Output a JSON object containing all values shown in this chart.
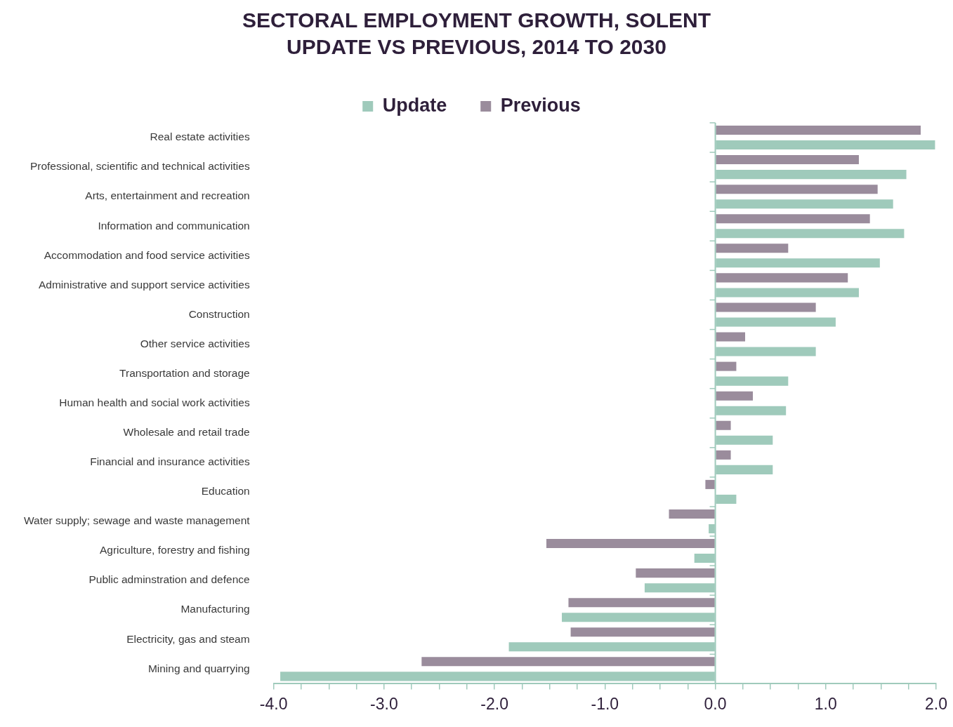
{
  "chart_data": {
    "type": "bar",
    "orientation": "horizontal",
    "title": "SECTORAL EMPLOYMENT GROWTH, SOLENT UPDATE VS PREVIOUS, 2014 TO 2030",
    "categories": [
      "Real estate activities",
      "Professional, scientific and technical activities",
      "Arts, entertainment and recreation",
      "Information and communication",
      "Accommodation and food service activities",
      "Administrative and support service activities",
      "Construction",
      "Other service activities",
      "Transportation and storage",
      "Human health and social work activities",
      "Wholesale and retail trade",
      "Financial and insurance activities",
      "Education",
      "Water supply; sewage and waste management",
      "Agriculture, forestry and fishing",
      "Public adminstration and defence",
      "Manufacturing",
      "Electricity, gas and steam",
      "Mining and quarrying"
    ],
    "series": [
      {
        "name": "Update",
        "color": "#9fcabb",
        "values": [
          1.99,
          1.73,
          1.61,
          1.71,
          1.49,
          1.3,
          1.09,
          0.91,
          0.66,
          0.64,
          0.52,
          0.52,
          0.19,
          -0.06,
          -0.19,
          -0.64,
          -1.39,
          -1.87,
          -3.94
        ]
      },
      {
        "name": "Previous",
        "color": "#9a8c9c",
        "values": [
          1.86,
          1.3,
          1.47,
          1.4,
          0.66,
          1.2,
          0.91,
          0.27,
          0.19,
          0.34,
          0.14,
          0.14,
          -0.09,
          -0.42,
          -1.53,
          -0.72,
          -1.33,
          -1.31,
          -2.66
        ]
      }
    ],
    "xlim": [
      -4,
      2
    ],
    "xticks": [
      {
        "value": -4,
        "label": "-4.0"
      },
      {
        "value": -3.75,
        "label": null
      },
      {
        "value": -3.5,
        "label": null
      },
      {
        "value": -3.25,
        "label": null
      },
      {
        "value": -3,
        "label": "-3.0"
      },
      {
        "value": -2.75,
        "label": null
      },
      {
        "value": -2.5,
        "label": null
      },
      {
        "value": -2.25,
        "label": null
      },
      {
        "value": -2,
        "label": "-2.0"
      },
      {
        "value": -1.75,
        "label": null
      },
      {
        "value": -1.5,
        "label": null
      },
      {
        "value": -1.25,
        "label": null
      },
      {
        "value": -1,
        "label": "-1.0"
      },
      {
        "value": -0.75,
        "label": null
      },
      {
        "value": -0.5,
        "label": null
      },
      {
        "value": -0.25,
        "label": null
      },
      {
        "value": 0,
        "label": "0.0"
      },
      {
        "value": 0.25,
        "label": null
      },
      {
        "value": 0.5,
        "label": null
      },
      {
        "value": 0.75,
        "label": null
      },
      {
        "value": 1,
        "label": "1.0"
      },
      {
        "value": 1.25,
        "label": null
      },
      {
        "value": 1.5,
        "label": null
      },
      {
        "value": 1.75,
        "label": null
      },
      {
        "value": 2,
        "label": "2.0"
      }
    ],
    "ref_lines": [
      {
        "axis": "x",
        "value": 0,
        "color": "#9fcabb"
      }
    ],
    "grid": false,
    "legend": "top"
  }
}
